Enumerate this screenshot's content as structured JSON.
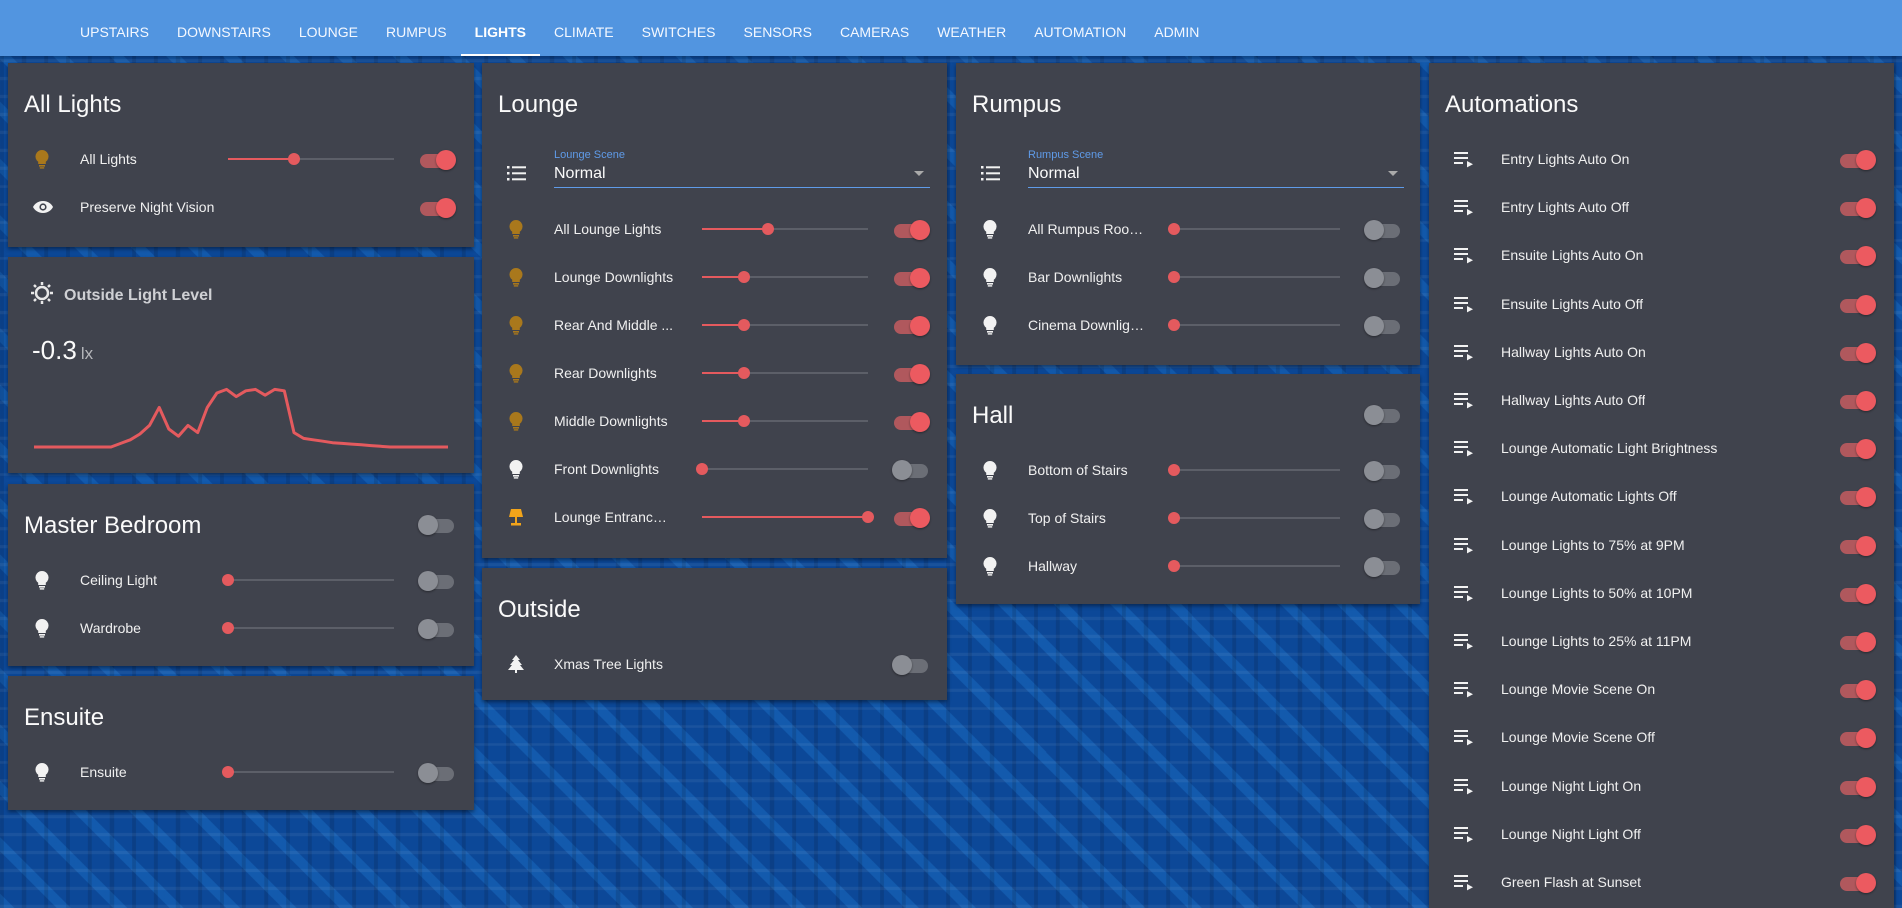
{
  "nav": {
    "tabs": [
      "UPSTAIRS",
      "DOWNSTAIRS",
      "LOUNGE",
      "RUMPUS",
      "LIGHTS",
      "CLIMATE",
      "SWITCHES",
      "SENSORS",
      "CAMERAS",
      "WEATHER",
      "AUTOMATION",
      "ADMIN"
    ],
    "active": "LIGHTS"
  },
  "colors": {
    "accent": "#e45a5e",
    "bulb_on": "#a9781c",
    "bulb_off": "#f2f2f2",
    "lamp_on": "#f2a41a",
    "header": "#5295e0",
    "card": "#40434d"
  },
  "all_lights": {
    "title": "All Lights",
    "rows": [
      {
        "icon": "bulb-on-icon",
        "label": "All Lights",
        "brightness": 0.4,
        "on": true
      },
      {
        "icon": "eye-icon",
        "label": "Preserve Night Vision",
        "on": true
      }
    ]
  },
  "outside_light_level": {
    "title": "Outside Light Level",
    "value": "-0.3",
    "unit": "lx",
    "history": [
      0,
      0,
      0,
      0,
      0,
      0,
      0,
      0,
      0,
      0.05,
      0.1,
      0.18,
      0.3,
      0.55,
      0.25,
      0.15,
      0.3,
      0.2,
      0.55,
      0.75,
      0.8,
      0.7,
      0.78,
      0.8,
      0.72,
      0.8,
      0.78,
      0.2,
      0.12,
      0.1,
      0.08,
      0.06,
      0.05,
      0.04,
      0.03,
      0.02,
      0.01,
      0,
      0,
      0,
      0,
      0,
      0,
      0
    ]
  },
  "master_bedroom": {
    "title": "Master Bedroom",
    "on": false,
    "rows": [
      {
        "icon": "bulb-off-icon",
        "label": "Ceiling Light",
        "brightness": 0,
        "on": false
      },
      {
        "icon": "bulb-off-icon",
        "label": "Wardrobe",
        "brightness": 0,
        "on": false
      }
    ]
  },
  "ensuite": {
    "title": "Ensuite",
    "rows": [
      {
        "icon": "bulb-off-icon",
        "label": "Ensuite",
        "brightness": 0,
        "on": false
      }
    ]
  },
  "lounge": {
    "title": "Lounge",
    "scene_label": "Lounge Scene",
    "scene_value": "Normal",
    "rows": [
      {
        "icon": "bulb-on-icon",
        "label": "All Lounge Lights",
        "brightness": 0.4,
        "on": true
      },
      {
        "icon": "bulb-on-icon",
        "label": "Lounge Downlights",
        "brightness": 0.25,
        "on": true
      },
      {
        "icon": "bulb-on-icon",
        "label": "Rear And Middle ...",
        "brightness": 0.25,
        "on": true
      },
      {
        "icon": "bulb-on-icon",
        "label": "Rear Downlights",
        "brightness": 0.25,
        "on": true
      },
      {
        "icon": "bulb-on-icon",
        "label": "Middle Downlights",
        "brightness": 0.25,
        "on": true
      },
      {
        "icon": "bulb-off-icon",
        "label": "Front Downlights",
        "brightness": 0,
        "on": false
      },
      {
        "icon": "lamp-icon",
        "label": "Lounge Entrance ...",
        "brightness": 1,
        "on": true
      }
    ]
  },
  "outside": {
    "title": "Outside",
    "rows": [
      {
        "icon": "tree-icon",
        "label": "Xmas Tree Lights",
        "on": false
      }
    ]
  },
  "rumpus": {
    "title": "Rumpus",
    "scene_label": "Rumpus Scene",
    "scene_value": "Normal",
    "rows": [
      {
        "icon": "bulb-off-icon",
        "label": "All Rumpus Room...",
        "brightness": 0,
        "on": false
      },
      {
        "icon": "bulb-off-icon",
        "label": "Bar Downlights",
        "brightness": 0,
        "on": false
      },
      {
        "icon": "bulb-off-icon",
        "label": "Cinema Downlights",
        "brightness": 0,
        "on": false
      }
    ]
  },
  "hall": {
    "title": "Hall",
    "on": false,
    "rows": [
      {
        "icon": "bulb-off-icon",
        "label": "Bottom of Stairs",
        "brightness": 0,
        "on": false
      },
      {
        "icon": "bulb-off-icon",
        "label": "Top of Stairs",
        "brightness": 0,
        "on": false
      },
      {
        "icon": "bulb-off-icon",
        "label": "Hallway",
        "brightness": 0,
        "on": false
      }
    ]
  },
  "automations": {
    "title": "Automations",
    "rows": [
      {
        "label": "Entry Lights Auto On",
        "on": true
      },
      {
        "label": "Entry Lights Auto Off",
        "on": true
      },
      {
        "label": "Ensuite Lights Auto On",
        "on": true
      },
      {
        "label": "Ensuite Lights Auto Off",
        "on": true
      },
      {
        "label": "Hallway Lights Auto On",
        "on": true
      },
      {
        "label": "Hallway Lights Auto Off",
        "on": true
      },
      {
        "label": "Lounge Automatic Light Brightness",
        "on": true
      },
      {
        "label": "Lounge Automatic Lights Off",
        "on": true
      },
      {
        "label": "Lounge Lights to 75% at 9PM",
        "on": true
      },
      {
        "label": "Lounge Lights to 50% at 10PM",
        "on": true
      },
      {
        "label": "Lounge Lights to 25% at 11PM",
        "on": true
      },
      {
        "label": "Lounge Movie Scene On",
        "on": true
      },
      {
        "label": "Lounge Movie Scene Off",
        "on": true
      },
      {
        "label": "Lounge Night Light On",
        "on": true
      },
      {
        "label": "Lounge Night Light Off",
        "on": true
      },
      {
        "label": "Green Flash at Sunset",
        "on": true
      }
    ]
  }
}
